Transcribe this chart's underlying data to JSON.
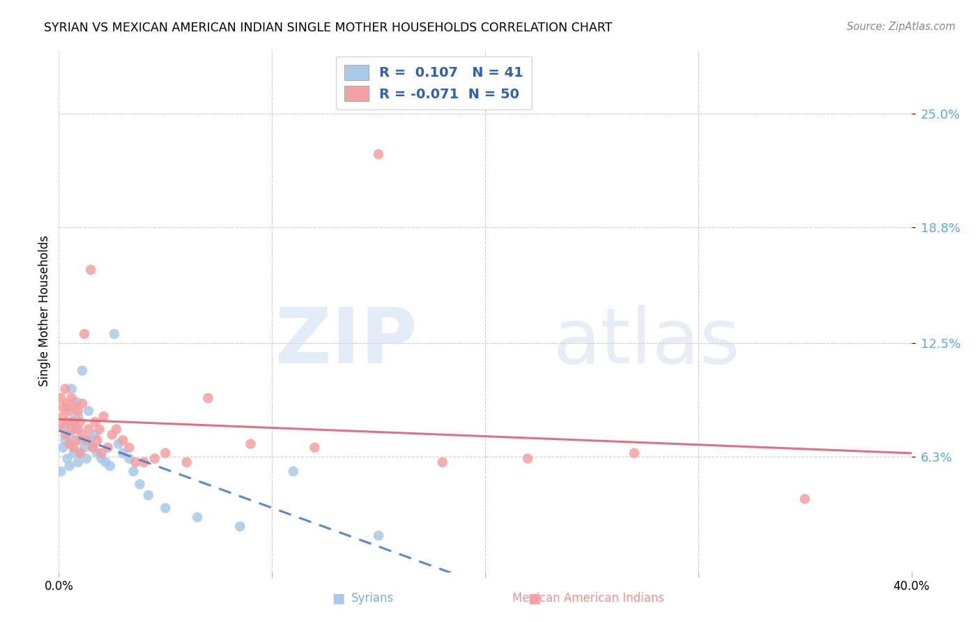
{
  "title": "SYRIAN VS MEXICAN AMERICAN INDIAN SINGLE MOTHER HOUSEHOLDS CORRELATION CHART",
  "source": "Source: ZipAtlas.com",
  "ylabel": "Single Mother Households",
  "ytick_vals": [
    0.063,
    0.125,
    0.188,
    0.25
  ],
  "ytick_labels": [
    "6.3%",
    "12.5%",
    "18.8%",
    "25.0%"
  ],
  "xmin": 0.0,
  "xmax": 0.4,
  "ymin": 0.0,
  "ymax": 0.285,
  "legend_syrian_R": " 0.107",
  "legend_syrian_N": "41",
  "legend_mexican_R": "-0.071",
  "legend_mexican_N": "50",
  "blue_scatter_color": "#a8c8e8",
  "pink_scatter_color": "#f4a0a0",
  "blue_line_color": "#4a7cc0",
  "pink_line_color": "#e06070",
  "background_color": "#ffffff",
  "grid_color": "#cccccc",
  "ytick_color": "#5aaadd",
  "blue_label_color": "#7ab0d8",
  "pink_label_color": "#f09090",
  "legend_text_color": "#3060b0",
  "syrians_x": [
    0.001,
    0.002,
    0.003,
    0.003,
    0.004,
    0.004,
    0.005,
    0.005,
    0.006,
    0.006,
    0.007,
    0.007,
    0.008,
    0.008,
    0.009,
    0.009,
    0.01,
    0.01,
    0.011,
    0.012,
    0.013,
    0.014,
    0.015,
    0.016,
    0.017,
    0.018,
    0.02,
    0.022,
    0.024,
    0.026,
    0.028,
    0.03,
    0.033,
    0.035,
    0.038,
    0.042,
    0.05,
    0.065,
    0.085,
    0.11,
    0.15
  ],
  "syrians_y": [
    0.055,
    0.068,
    0.072,
    0.08,
    0.062,
    0.09,
    0.058,
    0.075,
    0.1,
    0.07,
    0.065,
    0.083,
    0.078,
    0.093,
    0.06,
    0.085,
    0.072,
    0.065,
    0.11,
    0.068,
    0.062,
    0.088,
    0.073,
    0.068,
    0.075,
    0.065,
    0.062,
    0.06,
    0.058,
    0.13,
    0.07,
    0.065,
    0.062,
    0.055,
    0.048,
    0.042,
    0.035,
    0.03,
    0.025,
    0.055,
    0.02
  ],
  "mexicans_x": [
    0.001,
    0.001,
    0.002,
    0.002,
    0.003,
    0.003,
    0.004,
    0.004,
    0.005,
    0.005,
    0.006,
    0.006,
    0.007,
    0.007,
    0.008,
    0.008,
    0.009,
    0.009,
    0.01,
    0.01,
    0.011,
    0.011,
    0.012,
    0.013,
    0.014,
    0.015,
    0.016,
    0.017,
    0.018,
    0.019,
    0.02,
    0.021,
    0.023,
    0.025,
    0.027,
    0.03,
    0.033,
    0.036,
    0.04,
    0.045,
    0.05,
    0.06,
    0.07,
    0.09,
    0.12,
    0.15,
    0.18,
    0.22,
    0.27,
    0.35
  ],
  "mexicans_y": [
    0.08,
    0.095,
    0.085,
    0.09,
    0.075,
    0.1,
    0.082,
    0.092,
    0.07,
    0.088,
    0.078,
    0.095,
    0.082,
    0.068,
    0.09,
    0.072,
    0.088,
    0.078,
    0.082,
    0.065,
    0.092,
    0.075,
    0.13,
    0.072,
    0.078,
    0.165,
    0.068,
    0.082,
    0.072,
    0.078,
    0.065,
    0.085,
    0.068,
    0.075,
    0.078,
    0.072,
    0.068,
    0.06,
    0.06,
    0.062,
    0.065,
    0.06,
    0.095,
    0.07,
    0.068,
    0.228,
    0.06,
    0.062,
    0.065,
    0.04
  ],
  "blue_trend": [
    0.063,
    0.095
  ],
  "pink_trend": [
    0.085,
    0.068
  ]
}
